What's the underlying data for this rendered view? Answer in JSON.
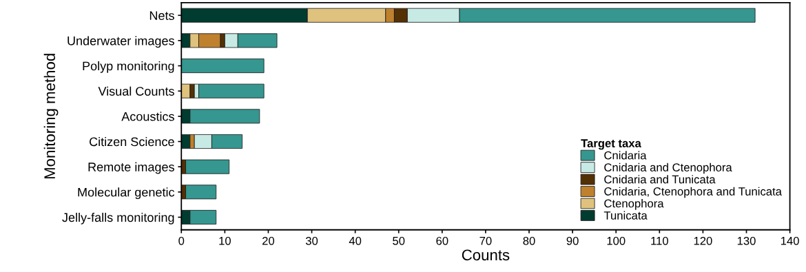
{
  "chart_data": {
    "type": "bar",
    "orientation": "horizontal",
    "stacked": true,
    "xlabel": "Counts",
    "ylabel": "Monitoring method",
    "legend_title": "Target taxa",
    "legend": "bottom right",
    "grid": false,
    "categories": [
      "Nets",
      "Underwater images",
      "Polyp monitoring",
      "Visual Counts",
      "Acoustics",
      "Citizen Science",
      "Remote images",
      "Molecular genetic",
      "Jelly-falls monitoring"
    ],
    "xlim": [
      0,
      140
    ],
    "xticks": [
      0,
      10,
      20,
      30,
      40,
      50,
      60,
      70,
      80,
      90,
      100,
      110,
      120,
      130,
      140
    ],
    "series": [
      {
        "name": "Tunicata",
        "color": "#003c30",
        "values": [
          29,
          2,
          0,
          0,
          2,
          2,
          0,
          0,
          2
        ]
      },
      {
        "name": "Ctenophora",
        "color": "#dfc27d",
        "values": [
          18,
          2,
          0,
          2,
          0,
          0,
          0,
          0,
          0
        ]
      },
      {
        "name": "Cnidaria, Ctenophora and Tunicata",
        "color": "#bf812d",
        "values": [
          2,
          5,
          0,
          0,
          0,
          1,
          0,
          0,
          0
        ]
      },
      {
        "name": "Cnidaria and Tunicata",
        "color": "#543005",
        "values": [
          3,
          1,
          0,
          1,
          0,
          0,
          1,
          1,
          0
        ]
      },
      {
        "name": "Cnidaria and Ctenophora",
        "color": "#c7eae5",
        "values": [
          12,
          3,
          0,
          1,
          0,
          4,
          0,
          0,
          0
        ]
      },
      {
        "name": "Cnidaria",
        "color": "#35978f",
        "values": [
          68,
          9,
          19,
          15,
          16,
          7,
          10,
          7,
          6
        ]
      }
    ]
  }
}
